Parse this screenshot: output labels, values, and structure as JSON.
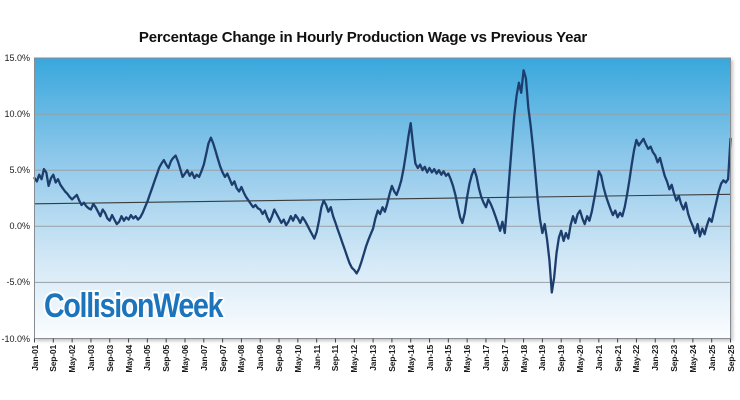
{
  "page": {
    "background": "#ffffff"
  },
  "logo": {
    "text": "CollisionWeek",
    "color": "#1c75bc"
  },
  "chart_data": {
    "type": "line",
    "title": "Percentage Change in Hourly Production Wage vs Previous Year",
    "legend": "none",
    "grid": "horizontal",
    "x_start": "Jan-01",
    "x_end": "Sep-25",
    "x_frequency": "monthly",
    "x_tick_interval_months": 8,
    "x_tick_labels": [
      "Jan-01",
      "Sep-01",
      "May-02",
      "Jan-03",
      "Sep-03",
      "May-04",
      "Jan-05",
      "Sep-05",
      "May-06",
      "Jan-07",
      "Sep-07",
      "May-08",
      "Jan-09",
      "Sep-09",
      "May-10",
      "Jan-11",
      "Sep-11",
      "May-12",
      "Jan-13",
      "Sep-13",
      "May-14",
      "Jan-15",
      "Sep-15",
      "May-16",
      "Jan-17",
      "Sep-17",
      "May-18",
      "Jan-19",
      "Sep-19",
      "May-20",
      "Jan-21",
      "Sep-21",
      "May-22",
      "Jan-23",
      "Sep-23",
      "May-24",
      "Jan-25",
      "Sep-25"
    ],
    "y_axis": {
      "min": -10,
      "max": 15,
      "tick_values": [
        15,
        10,
        5,
        0,
        -5,
        -10
      ],
      "tick_labels": [
        "15.0%",
        "10.0%",
        "5.0%",
        "0.0%",
        "-5.0%",
        "-10.0%"
      ]
    },
    "plot_background": {
      "gradient_top": "#38a7dc",
      "gradient_mid": "#8cc7ea",
      "gradient_low": "#d3e8f6",
      "gradient_bottom": "#fbfdff"
    },
    "gridline_color": "#9aa0a5",
    "border_color": "#878d92",
    "tick_color": "#444444",
    "trend_line": {
      "start_pct": 2.0,
      "end_pct": 2.85,
      "color": "#3b3b3b"
    },
    "series": [
      {
        "name": "Hourly production wage, % change vs previous year",
        "color": "#1d3d6d",
        "width": 2.3,
        "monthly_values_pct": [
          4.3,
          4.0,
          4.6,
          4.2,
          5.1,
          4.8,
          3.6,
          4.3,
          4.6,
          3.9,
          4.2,
          3.7,
          3.4,
          3.1,
          2.9,
          2.6,
          2.4,
          2.6,
          2.8,
          2.3,
          1.9,
          2.1,
          1.8,
          1.6,
          1.5,
          2.0,
          1.7,
          1.3,
          0.9,
          1.5,
          1.2,
          0.7,
          0.5,
          1.0,
          0.6,
          0.2,
          0.4,
          0.9,
          0.5,
          0.8,
          0.6,
          1.0,
          0.7,
          0.9,
          0.6,
          0.8,
          1.2,
          1.7,
          2.2,
          2.8,
          3.4,
          4.0,
          4.6,
          5.2,
          5.6,
          5.9,
          5.5,
          5.2,
          5.8,
          6.1,
          6.3,
          5.8,
          5.1,
          4.4,
          4.7,
          5.0,
          4.5,
          4.8,
          4.3,
          4.6,
          4.4,
          4.9,
          5.5,
          6.4,
          7.4,
          7.9,
          7.4,
          6.7,
          6.0,
          5.3,
          4.8,
          4.4,
          4.7,
          4.2,
          3.7,
          4.0,
          3.4,
          3.1,
          3.5,
          3.0,
          2.6,
          2.3,
          2.0,
          1.7,
          1.9,
          1.6,
          1.5,
          1.1,
          1.4,
          0.8,
          0.4,
          0.9,
          1.5,
          1.1,
          0.7,
          0.3,
          0.6,
          0.1,
          0.4,
          0.9,
          0.5,
          1.0,
          0.7,
          0.3,
          0.8,
          0.5,
          0.1,
          -0.3,
          -0.7,
          -1.1,
          -0.5,
          0.5,
          1.7,
          2.3,
          1.9,
          1.3,
          1.7,
          0.9,
          0.3,
          -0.3,
          -0.9,
          -1.5,
          -2.1,
          -2.7,
          -3.3,
          -3.7,
          -3.9,
          -4.2,
          -3.8,
          -3.2,
          -2.5,
          -1.8,
          -1.2,
          -0.7,
          -0.2,
          0.7,
          1.4,
          1.1,
          1.7,
          1.3,
          2.0,
          2.9,
          3.6,
          3.1,
          2.8,
          3.4,
          4.1,
          5.2,
          6.5,
          8.0,
          9.2,
          7.2,
          5.6,
          5.2,
          5.5,
          5.0,
          5.3,
          4.8,
          5.2,
          4.8,
          5.1,
          4.7,
          5.0,
          4.6,
          4.9,
          4.5,
          4.7,
          4.2,
          3.6,
          2.8,
          1.8,
          0.8,
          0.3,
          1.2,
          2.6,
          3.8,
          4.6,
          5.1,
          4.4,
          3.4,
          2.6,
          2.1,
          1.7,
          2.4,
          2.0,
          1.5,
          0.9,
          0.3,
          -0.4,
          0.4,
          -0.6,
          1.8,
          4.6,
          7.2,
          9.8,
          11.6,
          12.8,
          11.9,
          13.9,
          13.2,
          10.6,
          9.0,
          7.0,
          4.8,
          2.4,
          0.6,
          -0.6,
          0.2,
          -1.2,
          -3.0,
          -5.9,
          -4.6,
          -2.4,
          -1.0,
          -0.4,
          -1.3,
          -0.6,
          -1.1,
          0.1,
          0.9,
          0.3,
          1.1,
          1.4,
          0.7,
          0.2,
          0.9,
          0.5,
          1.3,
          2.4,
          3.6,
          4.9,
          4.5,
          3.5,
          2.7,
          2.1,
          1.5,
          1.0,
          1.4,
          0.8,
          1.2,
          0.9,
          1.7,
          2.8,
          4.1,
          5.5,
          6.8,
          7.7,
          7.2,
          7.5,
          7.8,
          7.3,
          6.9,
          7.1,
          6.6,
          6.3,
          5.7,
          6.1,
          5.3,
          4.5,
          4.0,
          3.3,
          3.7,
          2.9,
          2.3,
          2.7,
          2.0,
          1.5,
          2.1,
          1.1,
          0.5,
          0.0,
          -0.6,
          0.2,
          -0.9,
          -0.2,
          -0.7,
          0.1,
          0.7,
          0.4,
          1.3,
          2.2,
          3.1,
          3.8,
          4.1,
          3.9,
          4.2,
          7.8
        ]
      }
    ]
  }
}
